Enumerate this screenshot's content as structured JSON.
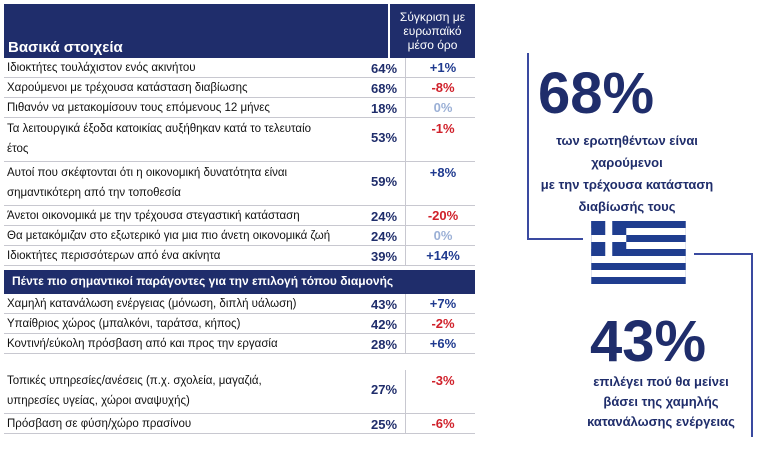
{
  "header": {
    "title": "Βασικά στοιχεία",
    "compare_label": [
      "Σύγκριση με",
      "ευρωπαϊκό",
      "μέσο όρο"
    ]
  },
  "rows_basic": [
    {
      "label": "Ιδιοκτήτες τουλάχιστον ενός ακινήτου",
      "pct": "64%",
      "cmp": "+1%",
      "tone": "pos"
    },
    {
      "label": "Χαρούμενοι με τρέχουσα κατάσταση διαβίωσης",
      "pct": "68%",
      "cmp": "-8%",
      "tone": "neg"
    },
    {
      "label": "Πιθανόν να μετακομίσουν τους επόμενους 12 μήνες",
      "pct": "18%",
      "cmp": "0%",
      "tone": "neu"
    },
    {
      "label": "Τα λειτουργικά έξοδα κατοικίας αυξήθηκαν κατά το τελευταίο",
      "label2": "έτος",
      "pct": "53%",
      "cmp": "-1%",
      "tone": "neg"
    },
    {
      "label": "Αυτοί που σκέφτονται ότι η οικονομική δυνατότητα είναι",
      "label2": "σημαντικότερη από την τοποθεσία",
      "pct": "59%",
      "cmp": "+8%",
      "tone": "pos"
    },
    {
      "label": "Άνετοι οικονομικά με την τρέχουσα στεγαστική κατάσταση",
      "pct": "24%",
      "cmp": "-20%",
      "tone": "neg"
    },
    {
      "label": "Θα μετακόμιζαν στο εξωτερικό για μια πιο άνετη οικονομικά ζωή",
      "pct": "24%",
      "cmp": "0%",
      "tone": "neu"
    },
    {
      "label": "Ιδιοκτήτες περισσότερων από ένα ακίνητα",
      "pct": "39%",
      "cmp": "+14%",
      "tone": "pos"
    }
  ],
  "section": {
    "title": "Πέντε πιο σημαντικοί παράγοντες για την επιλογή τόπου διαμονής"
  },
  "rows_factors": [
    {
      "label": "Χαμηλή κατανάλωση ενέργειας (μόνωση, διπλή υάλωση)",
      "pct": "43%",
      "cmp": "+7%",
      "tone": "pos"
    },
    {
      "label": "Υπαίθριος χώρος (μπαλκόνι, ταράτσα, κήπος)",
      "pct": "42%",
      "cmp": "-2%",
      "tone": "neg"
    },
    {
      "label": "Κοντινή/εύκολη πρόσβαση από και προς την εργασία",
      "pct": "28%",
      "cmp": "+6%",
      "tone": "pos"
    },
    {
      "label": "Τοπικές υπηρεσίες/ανέσεις (π.χ. σχολεία, μαγαζιά,",
      "label2": "υπηρεσίες υγείας, χώροι αναψυχής)",
      "pct": "27%",
      "cmp": "-3%",
      "tone": "neg"
    },
    {
      "label": "Πρόσβαση σε φύση/χώρο πρασίνου",
      "pct": "25%",
      "cmp": "-6%",
      "tone": "neg"
    }
  ],
  "stat1": {
    "value": "68%",
    "lines": [
      "των ερωτηθέντων είναι",
      "χαρούμενοι",
      "με την τρέχουσα κατάσταση",
      "διαβίωσής τους"
    ]
  },
  "stat2": {
    "value": "43%",
    "lines": [
      "επιλέγει πού θα μείνει",
      "βάσει της χαμηλής",
      "κατανάλωσης ενέργειας"
    ]
  },
  "colors": {
    "navy": "#1f2d6b",
    "positive": "#1f3a8f",
    "negative": "#d0202a",
    "neutral": "#9bb0d6",
    "flag_blue": "#1f3d8f"
  }
}
